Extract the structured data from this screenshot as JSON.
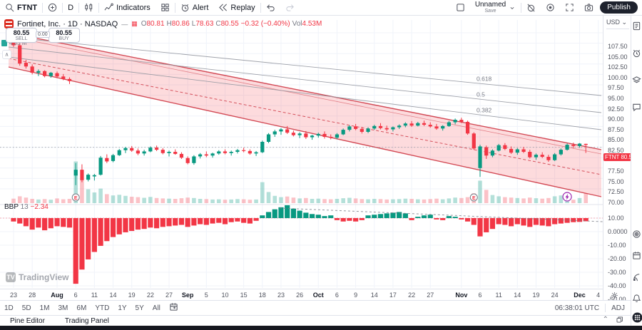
{
  "toolbar": {
    "symbol": "FTNT",
    "interval": "D",
    "indicators_label": "Indicators",
    "alert_label": "Alert",
    "replay_label": "Replay",
    "layout_name": "Unnamed",
    "layout_sub": "Save",
    "publish_label": "Publish"
  },
  "legend": {
    "title": "Fortinet, Inc. · 1D · NASDAQ",
    "o_label": "O",
    "o": "80.81",
    "h_label": "H",
    "h": "80.86",
    "l_label": "L",
    "l": "78.63",
    "c_label": "C",
    "c": "80.55",
    "change": "−0.32 (−0.40%)",
    "vol_label": "Vol",
    "vol": "4.53M"
  },
  "trade": {
    "sell_price": "80.55",
    "sell_label": "SELL",
    "spread": "0.00",
    "buy_price": "80.55",
    "buy_label": "BUY"
  },
  "vol_axis_tag": "4.53 M",
  "bbp_legend": {
    "name": "BBP",
    "param": "13",
    "value": "−2.34"
  },
  "watermark": {
    "logo": "TV",
    "text": "TradingView"
  },
  "price_scale": {
    "currency": "USD",
    "labels": [
      "107.50",
      "105.00",
      "102.50",
      "100.00",
      "97.50",
      "95.00",
      "92.50",
      "90.00",
      "87.50",
      "85.00",
      "82.50",
      "77.50",
      "75.00",
      "72.50",
      "70.00"
    ],
    "badge_symbol": "FTNT",
    "badge_value": "80.55"
  },
  "bbp_scale": [
    "10.00",
    "0.0000",
    "-10.00",
    "-20.00",
    "-30.00",
    "-40.00",
    "-50.00"
  ],
  "time_axis": {
    "ticks": [
      [
        "23",
        0
      ],
      [
        "28",
        3
      ],
      [
        "Aug",
        7
      ],
      [
        "6",
        10
      ],
      [
        "11",
        13
      ],
      [
        "14",
        16
      ],
      [
        "19",
        19
      ],
      [
        "22",
        22
      ],
      [
        "27",
        25
      ],
      [
        "Sep",
        28
      ],
      [
        "5",
        31
      ],
      [
        "10",
        34
      ],
      [
        "15",
        37
      ],
      [
        "18",
        40
      ],
      [
        "23",
        43
      ],
      [
        "26",
        46
      ],
      [
        "Oct",
        49
      ],
      [
        "6",
        52
      ],
      [
        "9",
        55
      ],
      [
        "14",
        58
      ],
      [
        "17",
        61
      ],
      [
        "22",
        64
      ],
      [
        "27",
        67
      ],
      [
        "Nov",
        72
      ],
      [
        "6",
        75
      ],
      [
        "11",
        78
      ],
      [
        "14",
        81
      ],
      [
        "19",
        84
      ],
      [
        "24",
        87
      ],
      [
        "Dec",
        91
      ],
      [
        "4",
        94
      ]
    ]
  },
  "bottom_bar": {
    "timeframes": [
      "1D",
      "5D",
      "1M",
      "3M",
      "6M",
      "YTD",
      "1Y",
      "5Y",
      "All"
    ],
    "clock": "06:38:01 UTC",
    "adj": "ADJ"
  },
  "tabs": {
    "pine": "Pine Editor",
    "trading": "Trading Panel"
  },
  "sidebar_icons": [
    "watchlist-icon",
    "alarm-icon",
    "layers-icon",
    "chat-icon",
    "bullseye-icon",
    "calendar-icon",
    "rss-icon",
    "bell-icon",
    "apps-icon",
    "question-icon"
  ],
  "chart_data": {
    "type": "candlestick",
    "symbol": "FTNT",
    "title": "Fortinet, Inc.",
    "interval": "1D",
    "exchange": "NASDAQ",
    "last": {
      "open": 80.81,
      "high": 80.86,
      "low": 78.63,
      "close": 80.55,
      "change": -0.32,
      "change_pct": -0.4,
      "volume_m": 4.53
    },
    "price_axis_range": [
      70.0,
      107.5
    ],
    "bbp_axis_range": [
      -50,
      10
    ],
    "colors": {
      "up": "#089981",
      "down": "#f23645",
      "up_vol": "rgba(8,153,129,0.30)",
      "down_vol": "rgba(242,54,69,0.30)",
      "channel_line": "#cc2f3c",
      "channel_fill": "rgba(242,54,69,0.18)",
      "fib_line": "#9598a1",
      "grid": "#f0f3fa",
      "badge": "#f23645",
      "flash": "#9c27b0"
    },
    "fib_labels": [
      "0.618",
      "0.5",
      "0.382"
    ],
    "price_line": 80.0,
    "candles": [
      [
        105.2,
        105.9,
        104.1,
        104.5
      ],
      [
        104.5,
        104.9,
        99.6,
        100.1
      ],
      [
        100.3,
        101.0,
        98.9,
        99.4
      ],
      [
        99.4,
        99.9,
        97.5,
        97.9
      ],
      [
        97.9,
        98.7,
        97.1,
        98.3
      ],
      [
        98.3,
        98.5,
        96.8,
        97.1
      ],
      [
        97.1,
        98.1,
        96.7,
        97.9
      ],
      [
        97.8,
        98.2,
        96.6,
        97.0
      ],
      [
        97.0,
        97.6,
        96.1,
        96.4
      ],
      [
        96.4,
        96.8,
        95.2,
        95.9
      ],
      [
        73.2,
        76.2,
        70.9,
        74.6
      ],
      [
        74.6,
        75.9,
        71.6,
        72.1
      ],
      [
        72.2,
        73.7,
        71.8,
        73.4
      ],
      [
        73.0,
        73.6,
        72.0,
        73.3
      ],
      [
        73.4,
        77.9,
        73.2,
        77.5
      ],
      [
        77.4,
        78.3,
        76.2,
        76.6
      ],
      [
        76.7,
        78.4,
        76.4,
        78.1
      ],
      [
        78.1,
        79.6,
        77.9,
        79.3
      ],
      [
        79.3,
        80.1,
        78.6,
        79.8
      ],
      [
        79.8,
        80.3,
        78.9,
        79.2
      ],
      [
        79.2,
        79.7,
        78.1,
        78.5
      ],
      [
        78.5,
        79.4,
        78.0,
        79.0
      ],
      [
        79.0,
        80.2,
        78.8,
        79.9
      ],
      [
        79.9,
        80.4,
        79.1,
        79.4
      ],
      [
        79.4,
        79.8,
        78.3,
        78.6
      ],
      [
        78.6,
        79.2,
        77.8,
        78.9
      ],
      [
        78.9,
        79.5,
        78.2,
        78.4
      ],
      [
        78.4,
        78.8,
        77.2,
        77.5
      ],
      [
        77.4,
        77.8,
        75.9,
        76.2
      ],
      [
        76.2,
        78.1,
        75.8,
        77.8
      ],
      [
        77.8,
        78.6,
        77.3,
        78.3
      ],
      [
        78.3,
        79.0,
        77.6,
        78.0
      ],
      [
        78.0,
        78.7,
        77.5,
        78.5
      ],
      [
        78.5,
        79.3,
        78.2,
        79.0
      ],
      [
        79.0,
        79.5,
        78.3,
        78.6
      ],
      [
        78.6,
        79.2,
        78.0,
        78.9
      ],
      [
        78.9,
        79.6,
        78.5,
        79.3
      ],
      [
        79.3,
        79.9,
        78.8,
        79.1
      ],
      [
        79.1,
        79.5,
        78.2,
        78.5
      ],
      [
        78.5,
        79.1,
        77.9,
        78.8
      ],
      [
        78.8,
        81.6,
        78.6,
        81.3
      ],
      [
        81.3,
        83.4,
        81.0,
        83.1
      ],
      [
        83.1,
        84.2,
        82.5,
        83.8
      ],
      [
        83.8,
        84.6,
        83.0,
        84.3
      ],
      [
        84.3,
        85.1,
        83.2,
        83.5
      ],
      [
        83.5,
        84.0,
        82.6,
        82.9
      ],
      [
        82.9,
        83.6,
        82.2,
        83.3
      ],
      [
        83.3,
        83.9,
        82.0,
        82.4
      ],
      [
        82.4,
        83.0,
        81.8,
        82.8
      ],
      [
        82.8,
        83.5,
        82.3,
        83.2
      ],
      [
        83.2,
        83.8,
        82.1,
        82.5
      ],
      [
        82.5,
        83.1,
        81.9,
        82.3
      ],
      [
        82.3,
        83.4,
        82.0,
        83.1
      ],
      [
        83.1,
        84.5,
        82.9,
        84.2
      ],
      [
        84.2,
        85.3,
        83.8,
        85.0
      ],
      [
        85.0,
        85.6,
        84.1,
        84.4
      ],
      [
        84.4,
        84.9,
        83.3,
        83.7
      ],
      [
        83.7,
        84.8,
        83.4,
        84.5
      ],
      [
        84.5,
        85.4,
        84.2,
        85.1
      ],
      [
        85.1,
        85.8,
        84.3,
        84.6
      ],
      [
        84.6,
        85.2,
        83.9,
        84.3
      ],
      [
        84.3,
        85.0,
        83.8,
        84.8
      ],
      [
        84.8,
        85.5,
        84.4,
        85.2
      ],
      [
        85.2,
        86.0,
        84.8,
        85.7
      ],
      [
        85.7,
        86.3,
        84.9,
        85.2
      ],
      [
        85.2,
        86.1,
        85.0,
        85.8
      ],
      [
        85.8,
        86.4,
        85.1,
        85.4
      ],
      [
        85.4,
        86.0,
        84.7,
        85.0
      ],
      [
        85.0,
        85.6,
        84.2,
        84.5
      ],
      [
        84.5,
        85.3,
        84.0,
        85.1
      ],
      [
        85.1,
        86.3,
        84.9,
        86.0
      ],
      [
        86.0,
        86.9,
        85.5,
        86.6
      ],
      [
        86.6,
        87.1,
        85.8,
        86.1
      ],
      [
        86.1,
        86.4,
        83.0,
        83.3
      ],
      [
        83.3,
        83.6,
        79.4,
        79.7
      ],
      [
        75.0,
        80.6,
        72.9,
        80.2
      ],
      [
        80.0,
        80.4,
        77.2,
        78.0
      ],
      [
        78.0,
        79.5,
        77.6,
        79.2
      ],
      [
        79.2,
        80.8,
        79.0,
        80.5
      ],
      [
        80.5,
        81.0,
        79.3,
        79.6
      ],
      [
        79.6,
        80.2,
        78.4,
        78.7
      ],
      [
        78.7,
        79.8,
        78.2,
        79.5
      ],
      [
        79.5,
        80.1,
        78.6,
        78.9
      ],
      [
        78.9,
        79.4,
        77.3,
        77.6
      ],
      [
        77.6,
        78.5,
        77.0,
        78.2
      ],
      [
        78.2,
        78.8,
        77.4,
        77.7
      ],
      [
        77.7,
        78.2,
        76.5,
        76.9
      ],
      [
        76.9,
        78.6,
        76.7,
        78.3
      ],
      [
        78.3,
        79.7,
        78.0,
        79.4
      ],
      [
        79.4,
        80.9,
        79.2,
        80.6
      ],
      [
        80.6,
        81.1,
        79.8,
        80.3
      ],
      [
        80.3,
        81.0,
        79.9,
        80.87
      ],
      [
        80.81,
        80.86,
        78.63,
        80.55
      ]
    ],
    "volume_m": [
      2.1,
      3.2,
      2.6,
      2.0,
      1.7,
      1.9,
      1.6,
      2.2,
      1.8,
      2.0,
      19.5,
      11.0,
      6.5,
      5.0,
      6.8,
      4.2,
      3.6,
      3.9,
      3.4,
      3.0,
      2.8,
      2.5,
      2.9,
      2.4,
      2.2,
      2.1,
      2.0,
      2.3,
      2.6,
      2.4,
      2.0,
      1.9,
      1.7,
      1.8,
      1.6,
      1.7,
      1.9,
      1.8,
      1.6,
      1.7,
      9.8,
      5.2,
      3.4,
      2.8,
      3.1,
      2.6,
      2.2,
      2.4,
      2.0,
      2.1,
      1.9,
      1.8,
      2.0,
      2.3,
      2.5,
      2.2,
      1.9,
      1.8,
      2.0,
      1.9,
      1.7,
      1.8,
      1.9,
      2.1,
      2.0,
      1.8,
      1.7,
      1.9,
      2.1,
      1.8,
      2.2,
      2.6,
      2.4,
      2.8,
      4.6,
      10.5,
      6.2,
      3.8,
      3.2,
      2.8,
      2.6,
      2.4,
      2.2,
      2.6,
      2.3,
      2.1,
      2.4,
      3.2,
      3.6,
      4.8,
      1.6,
      2.4,
      4.53
    ],
    "bbp": [
      -2.5,
      -4,
      -6,
      -8.5,
      -7,
      -9,
      -7.5,
      -6,
      -6.5,
      -7,
      -48.5,
      -38,
      -30.5,
      -25,
      -20.5,
      -17,
      -14,
      -12,
      -10.5,
      -9.5,
      -8.5,
      -8,
      -7,
      -7.5,
      -6.5,
      -6,
      -5.5,
      -5,
      -6.5,
      -5.5,
      -4.5,
      -5,
      -4,
      -3.5,
      -4.5,
      -3,
      -2.5,
      -3.5,
      -4,
      -2,
      2,
      4.5,
      6.5,
      8,
      9.5,
      7,
      5.5,
      4,
      3,
      2.5,
      1.5,
      2,
      -1.5,
      -2.5,
      -2,
      -2.5,
      -1.5,
      2,
      2.5,
      3,
      3.5,
      4,
      4.5,
      3.5,
      -1.5,
      1,
      2,
      2.5,
      -1,
      -1.5,
      1.5,
      1,
      -1,
      -2.5,
      -5,
      -13.5,
      -10.5,
      -8,
      -4.5,
      -5,
      -6,
      -4.5,
      -5.5,
      -6.5,
      -5,
      -5.5,
      -6,
      -4.5,
      -4,
      -3.5,
      -3,
      -2.8,
      -2.34
    ],
    "markers": {
      "earnings_indices": [
        10,
        74
      ],
      "flash_indices": [
        89
      ],
      "earnings_glyph": "E"
    }
  }
}
